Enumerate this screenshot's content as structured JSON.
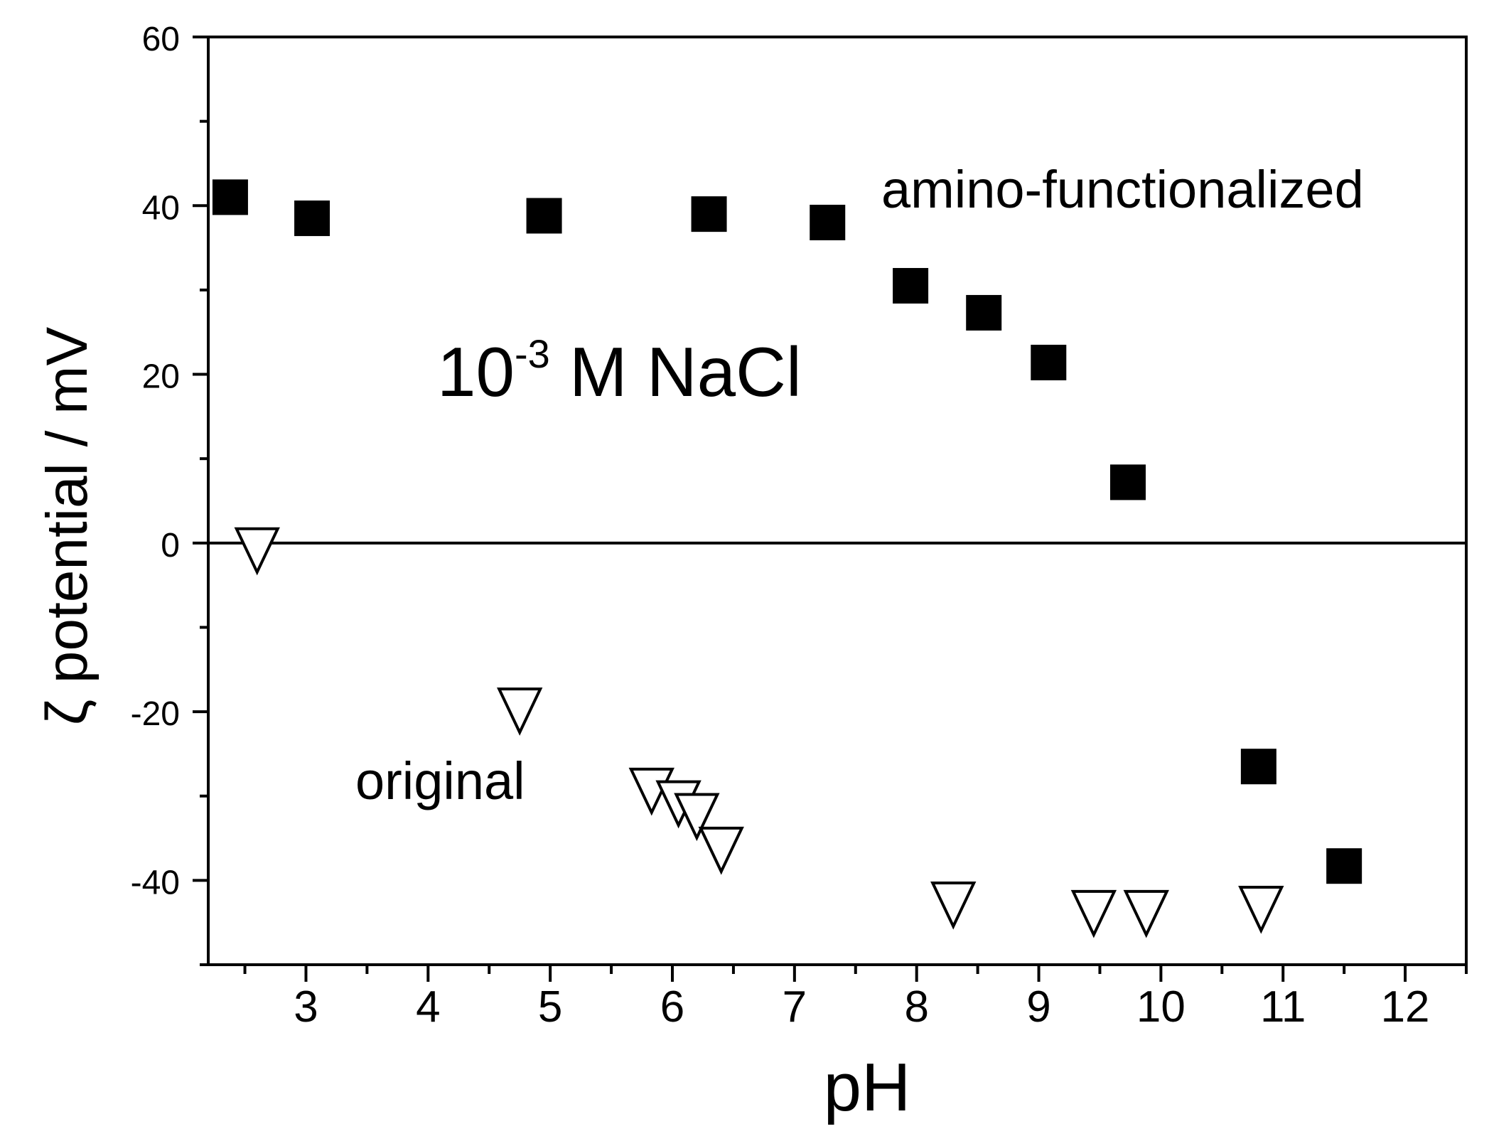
{
  "chart_data": {
    "type": "scatter",
    "xlabel": "pH",
    "ylabel": "ζ potential / mV",
    "xlim": [
      2.2,
      12.5
    ],
    "ylim": [
      -50,
      60
    ],
    "x_ticks": [
      3,
      4,
      5,
      6,
      7,
      8,
      9,
      10,
      11,
      12
    ],
    "y_ticks": [
      -40,
      -20,
      0,
      20,
      40,
      60
    ],
    "grid": false,
    "zero_line": true,
    "annotations": {
      "salt_base": "10",
      "salt_exp": "-3",
      "salt_rest": " M NaCl",
      "amino": "amino-functionalized",
      "original": "original"
    },
    "series": [
      {
        "marker": "filled-square",
        "color": "#000000",
        "points": [
          {
            "x": 2.38,
            "y": 41.0
          },
          {
            "x": 3.05,
            "y": 38.5
          },
          {
            "x": 4.95,
            "y": 38.8
          },
          {
            "x": 6.3,
            "y": 39.0
          },
          {
            "x": 7.27,
            "y": 38.0
          },
          {
            "x": 7.95,
            "y": 30.5
          },
          {
            "x": 8.55,
            "y": 27.3
          },
          {
            "x": 9.08,
            "y": 21.4
          },
          {
            "x": 9.73,
            "y": 7.2
          },
          {
            "x": 10.8,
            "y": -26.5
          },
          {
            "x": 11.5,
            "y": -38.3
          }
        ]
      },
      {
        "marker": "open-down-triangle",
        "color": "#000000",
        "points": [
          {
            "x": 2.6,
            "y": -0.5
          },
          {
            "x": 4.75,
            "y": -19.5
          },
          {
            "x": 5.83,
            "y": -29.0
          },
          {
            "x": 6.05,
            "y": -30.5
          },
          {
            "x": 6.2,
            "y": -32.0
          },
          {
            "x": 6.4,
            "y": -36.0
          },
          {
            "x": 8.3,
            "y": -42.5
          },
          {
            "x": 9.45,
            "y": -43.5
          },
          {
            "x": 9.88,
            "y": -43.5
          },
          {
            "x": 10.82,
            "y": -43.0
          }
        ]
      }
    ]
  }
}
